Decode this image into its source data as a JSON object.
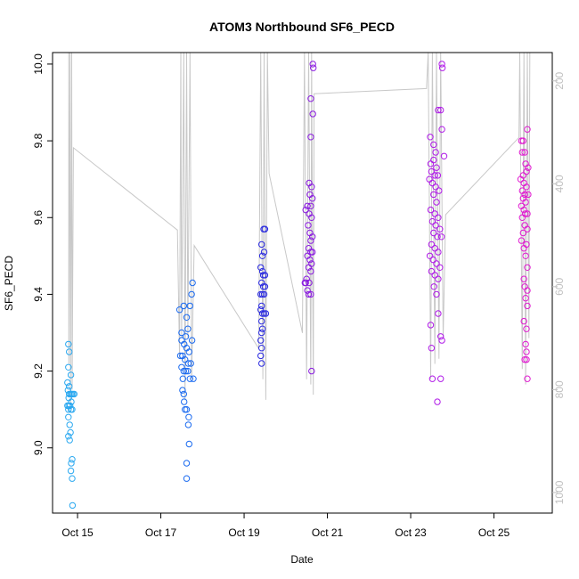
{
  "chart_data": {
    "type": "scatter",
    "title": "ATOM3 Northbound SF6_PECD",
    "xlabel": "Date",
    "ylabel": "SF6_PECD",
    "x_unit": "days in October",
    "xlim": [
      14.4,
      26.4
    ],
    "ylim": [
      8.83,
      10.03
    ],
    "y2lim": [
      1040,
      145
    ],
    "x_ticks": [
      {
        "value": 15,
        "label": "Oct 15"
      },
      {
        "value": 17,
        "label": "Oct 17"
      },
      {
        "value": 19,
        "label": "Oct 19"
      },
      {
        "value": 21,
        "label": "Oct 21"
      },
      {
        "value": 23,
        "label": "Oct 23"
      },
      {
        "value": 25,
        "label": "Oct 25"
      }
    ],
    "y_ticks": [
      9.0,
      9.2,
      9.4,
      9.6,
      9.8,
      10.0
    ],
    "y2_ticks": [
      200,
      400,
      600,
      800,
      1000
    ],
    "grid": false,
    "legend": "none",
    "series": [
      {
        "color": "#2aa8f0",
        "points": [
          [
            14.78,
            9.27
          ],
          [
            14.8,
            9.25
          ],
          [
            14.78,
            9.21
          ],
          [
            14.76,
            9.17
          ],
          [
            14.8,
            9.16
          ],
          [
            14.84,
            9.19
          ],
          [
            14.77,
            9.15
          ],
          [
            14.8,
            9.14
          ],
          [
            14.83,
            9.14
          ],
          [
            14.86,
            9.14
          ],
          [
            14.89,
            9.14
          ],
          [
            14.92,
            9.14
          ],
          [
            14.79,
            9.13
          ],
          [
            14.85,
            9.12
          ],
          [
            14.76,
            9.11
          ],
          [
            14.79,
            9.11
          ],
          [
            14.82,
            9.11
          ],
          [
            14.78,
            9.1
          ],
          [
            14.84,
            9.1
          ],
          [
            14.87,
            9.1
          ],
          [
            14.78,
            9.08
          ],
          [
            14.81,
            9.06
          ],
          [
            14.83,
            9.04
          ],
          [
            14.78,
            9.03
          ],
          [
            14.81,
            9.02
          ],
          [
            14.87,
            8.97
          ],
          [
            14.85,
            8.96
          ],
          [
            14.84,
            8.94
          ],
          [
            14.87,
            8.92
          ],
          [
            14.88,
            8.85
          ]
        ]
      },
      {
        "color": "#1a6af0",
        "points": [
          [
            17.45,
            9.36
          ],
          [
            17.55,
            9.37
          ],
          [
            17.62,
            9.34
          ],
          [
            17.7,
            9.37
          ],
          [
            17.74,
            9.4
          ],
          [
            17.76,
            9.43
          ],
          [
            17.5,
            9.3
          ],
          [
            17.6,
            9.29
          ],
          [
            17.65,
            9.31
          ],
          [
            17.75,
            9.28
          ],
          [
            17.5,
            9.28
          ],
          [
            17.56,
            9.27
          ],
          [
            17.62,
            9.26
          ],
          [
            17.68,
            9.25
          ],
          [
            17.47,
            9.24
          ],
          [
            17.52,
            9.24
          ],
          [
            17.58,
            9.23
          ],
          [
            17.66,
            9.22
          ],
          [
            17.72,
            9.22
          ],
          [
            17.5,
            9.21
          ],
          [
            17.55,
            9.2
          ],
          [
            17.6,
            9.2
          ],
          [
            17.65,
            9.2
          ],
          [
            17.53,
            9.18
          ],
          [
            17.7,
            9.18
          ],
          [
            17.78,
            9.18
          ],
          [
            17.52,
            9.15
          ],
          [
            17.55,
            9.14
          ],
          [
            17.56,
            9.12
          ],
          [
            17.58,
            9.1
          ],
          [
            17.62,
            9.1
          ],
          [
            17.67,
            9.08
          ],
          [
            17.66,
            9.06
          ],
          [
            17.68,
            9.01
          ],
          [
            17.62,
            8.96
          ],
          [
            17.62,
            8.92
          ]
        ]
      },
      {
        "color": "#2a2ae0",
        "points": [
          [
            19.42,
            9.53
          ],
          [
            19.47,
            9.57
          ],
          [
            19.5,
            9.57
          ],
          [
            19.44,
            9.5
          ],
          [
            19.48,
            9.51
          ],
          [
            19.4,
            9.47
          ],
          [
            19.44,
            9.46
          ],
          [
            19.46,
            9.45
          ],
          [
            19.5,
            9.45
          ],
          [
            19.42,
            9.43
          ],
          [
            19.46,
            9.42
          ],
          [
            19.5,
            9.42
          ],
          [
            19.4,
            9.4
          ],
          [
            19.44,
            9.4
          ],
          [
            19.48,
            9.4
          ],
          [
            19.42,
            9.37
          ],
          [
            19.4,
            9.36
          ],
          [
            19.44,
            9.35
          ],
          [
            19.48,
            9.35
          ],
          [
            19.52,
            9.35
          ],
          [
            19.42,
            9.33
          ],
          [
            19.44,
            9.31
          ],
          [
            19.42,
            9.3
          ],
          [
            19.4,
            9.28
          ],
          [
            19.42,
            9.26
          ],
          [
            19.4,
            9.24
          ],
          [
            19.42,
            9.22
          ]
        ]
      },
      {
        "color": "#8a1ae0",
        "points": [
          [
            20.65,
            10.0
          ],
          [
            20.66,
            9.99
          ],
          [
            20.6,
            9.91
          ],
          [
            20.65,
            9.87
          ],
          [
            20.6,
            9.81
          ],
          [
            20.56,
            9.69
          ],
          [
            20.62,
            9.68
          ],
          [
            20.58,
            9.66
          ],
          [
            20.64,
            9.65
          ],
          [
            20.52,
            9.63
          ],
          [
            20.6,
            9.63
          ],
          [
            20.48,
            9.62
          ],
          [
            20.56,
            9.61
          ],
          [
            20.62,
            9.6
          ],
          [
            20.54,
            9.58
          ],
          [
            20.58,
            9.56
          ],
          [
            20.64,
            9.55
          ],
          [
            20.6,
            9.54
          ],
          [
            20.55,
            9.52
          ],
          [
            20.6,
            9.51
          ],
          [
            20.64,
            9.51
          ],
          [
            20.52,
            9.5
          ],
          [
            20.58,
            9.49
          ],
          [
            20.62,
            9.48
          ],
          [
            20.55,
            9.47
          ],
          [
            20.6,
            9.46
          ],
          [
            20.5,
            9.44
          ],
          [
            20.56,
            9.43
          ],
          [
            20.48,
            9.43
          ],
          [
            20.46,
            9.43
          ],
          [
            20.52,
            9.41
          ],
          [
            20.6,
            9.4
          ],
          [
            20.55,
            9.4
          ],
          [
            20.62,
            9.2
          ]
        ]
      },
      {
        "color": "#b01ae8",
        "points": [
          [
            23.75,
            10.0
          ],
          [
            23.76,
            9.99
          ],
          [
            23.66,
            9.88
          ],
          [
            23.72,
            9.88
          ],
          [
            23.75,
            9.83
          ],
          [
            23.47,
            9.81
          ],
          [
            23.55,
            9.79
          ],
          [
            23.6,
            9.77
          ],
          [
            23.8,
            9.76
          ],
          [
            23.55,
            9.75
          ],
          [
            23.48,
            9.74
          ],
          [
            23.62,
            9.73
          ],
          [
            23.5,
            9.72
          ],
          [
            23.58,
            9.71
          ],
          [
            23.65,
            9.71
          ],
          [
            23.45,
            9.7
          ],
          [
            23.52,
            9.69
          ],
          [
            23.6,
            9.68
          ],
          [
            23.68,
            9.67
          ],
          [
            23.55,
            9.66
          ],
          [
            23.62,
            9.64
          ],
          [
            23.48,
            9.62
          ],
          [
            23.58,
            9.61
          ],
          [
            23.66,
            9.6
          ],
          [
            23.52,
            9.59
          ],
          [
            23.6,
            9.58
          ],
          [
            23.7,
            9.57
          ],
          [
            23.55,
            9.56
          ],
          [
            23.64,
            9.55
          ],
          [
            23.74,
            9.55
          ],
          [
            23.5,
            9.53
          ],
          [
            23.58,
            9.52
          ],
          [
            23.66,
            9.51
          ],
          [
            23.46,
            9.5
          ],
          [
            23.54,
            9.49
          ],
          [
            23.62,
            9.48
          ],
          [
            23.7,
            9.47
          ],
          [
            23.5,
            9.46
          ],
          [
            23.58,
            9.45
          ],
          [
            23.66,
            9.44
          ],
          [
            23.56,
            9.42
          ],
          [
            23.62,
            9.4
          ],
          [
            23.66,
            9.35
          ],
          [
            23.48,
            9.32
          ],
          [
            23.72,
            9.29
          ],
          [
            23.75,
            9.28
          ],
          [
            23.5,
            9.26
          ],
          [
            23.72,
            9.18
          ],
          [
            23.52,
            9.18
          ],
          [
            23.64,
            9.12
          ]
        ]
      },
      {
        "color": "#e01ad0",
        "points": [
          [
            25.7,
            9.8
          ],
          [
            25.66,
            9.8
          ],
          [
            25.74,
            9.77
          ],
          [
            25.68,
            9.77
          ],
          [
            25.8,
            9.83
          ],
          [
            25.76,
            9.74
          ],
          [
            25.82,
            9.73
          ],
          [
            25.78,
            9.72
          ],
          [
            25.7,
            9.71
          ],
          [
            25.64,
            9.7
          ],
          [
            25.72,
            9.69
          ],
          [
            25.78,
            9.68
          ],
          [
            25.68,
            9.67
          ],
          [
            25.74,
            9.66
          ],
          [
            25.82,
            9.66
          ],
          [
            25.7,
            9.65
          ],
          [
            25.76,
            9.64
          ],
          [
            25.66,
            9.63
          ],
          [
            25.72,
            9.62
          ],
          [
            25.8,
            9.61
          ],
          [
            25.75,
            9.61
          ],
          [
            25.68,
            9.6
          ],
          [
            25.74,
            9.58
          ],
          [
            25.8,
            9.57
          ],
          [
            25.7,
            9.56
          ],
          [
            25.66,
            9.54
          ],
          [
            25.78,
            9.53
          ],
          [
            25.72,
            9.52
          ],
          [
            25.76,
            9.5
          ],
          [
            25.8,
            9.47
          ],
          [
            25.72,
            9.44
          ],
          [
            25.74,
            9.42
          ],
          [
            25.8,
            9.41
          ],
          [
            25.76,
            9.39
          ],
          [
            25.8,
            9.37
          ],
          [
            25.72,
            9.33
          ],
          [
            25.78,
            9.31
          ],
          [
            25.76,
            9.27
          ],
          [
            25.78,
            9.25
          ],
          [
            25.74,
            9.23
          ],
          [
            25.78,
            9.23
          ],
          [
            25.8,
            9.18
          ]
        ]
      }
    ],
    "trace": {
      "color": "#c8c8c8",
      "points": [
        [
          14.79,
          145
        ],
        [
          14.79,
          750
        ],
        [
          14.82,
          145
        ],
        [
          14.83,
          830
        ],
        [
          14.86,
          145
        ],
        [
          14.87,
          800
        ],
        [
          14.9,
          330
        ],
        [
          17.4,
          490
        ],
        [
          17.45,
          740
        ],
        [
          17.48,
          145
        ],
        [
          17.5,
          700
        ],
        [
          17.55,
          145
        ],
        [
          17.58,
          820
        ],
        [
          17.62,
          145
        ],
        [
          17.65,
          700
        ],
        [
          17.7,
          145
        ],
        [
          17.74,
          780
        ],
        [
          17.8,
          520
        ],
        [
          19.35,
          720
        ],
        [
          19.4,
          145
        ],
        [
          19.45,
          780
        ],
        [
          19.48,
          145
        ],
        [
          19.52,
          820
        ],
        [
          19.56,
          145
        ],
        [
          19.6,
          380
        ],
        [
          20.4,
          690
        ],
        [
          20.45,
          145
        ],
        [
          20.5,
          780
        ],
        [
          20.55,
          145
        ],
        [
          20.6,
          790
        ],
        [
          20.62,
          145
        ],
        [
          20.66,
          810
        ],
        [
          20.68,
          225
        ],
        [
          23.38,
          215
        ],
        [
          23.42,
          145
        ],
        [
          23.48,
          780
        ],
        [
          23.52,
          145
        ],
        [
          23.58,
          750
        ],
        [
          23.62,
          145
        ],
        [
          23.68,
          740
        ],
        [
          23.72,
          145
        ],
        [
          23.78,
          700
        ],
        [
          23.84,
          460
        ],
        [
          25.6,
          310
        ],
        [
          25.62,
          145
        ],
        [
          25.68,
          760
        ],
        [
          25.72,
          145
        ],
        [
          25.76,
          790
        ],
        [
          25.8,
          145
        ],
        [
          25.84,
          700
        ],
        [
          25.86,
          145
        ]
      ]
    }
  }
}
